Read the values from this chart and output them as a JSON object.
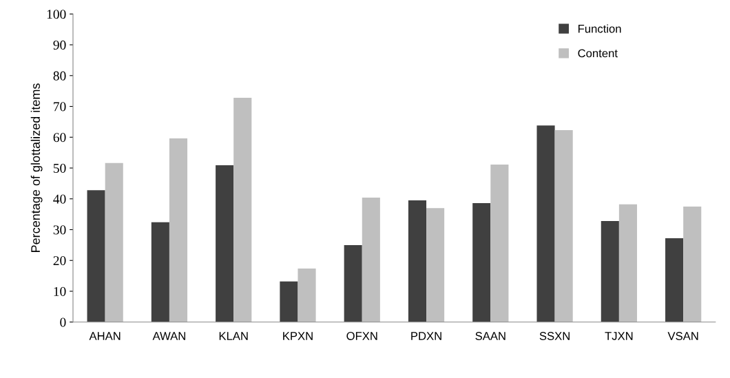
{
  "chart_data": {
    "type": "bar",
    "ylabel": "Percentage of glottalized items",
    "categories": [
      "AHAN",
      "AWAN",
      "KLAN",
      "KPXN",
      "OFXN",
      "PDXN",
      "SAAN",
      "SSXN",
      "TJXN",
      "VSAN"
    ],
    "series": [
      {
        "name": "Function",
        "color": "#404040",
        "values": [
          42.8,
          32.4,
          50.9,
          13.2,
          25.0,
          39.5,
          38.6,
          63.8,
          32.8,
          27.2
        ]
      },
      {
        "name": "Content",
        "color": "#bfbfbf",
        "values": [
          51.6,
          59.6,
          72.8,
          17.4,
          40.4,
          37.0,
          51.1,
          62.3,
          38.2,
          37.5
        ]
      }
    ],
    "ylim": [
      0,
      100
    ],
    "yticks": [
      0,
      10,
      20,
      30,
      40,
      50,
      60,
      70,
      80,
      90,
      100
    ],
    "grid": false,
    "legend": "top right"
  }
}
